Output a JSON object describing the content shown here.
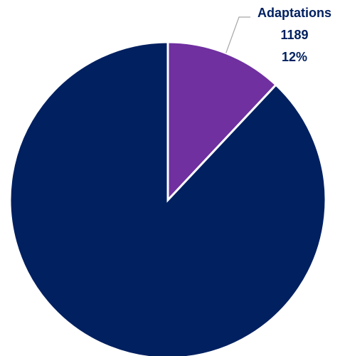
{
  "chart_data": {
    "type": "pie",
    "start_angle_deg": 0,
    "direction": "clockwise",
    "slices": [
      {
        "name": "Adaptations",
        "value": 1189,
        "percent_label": "12%",
        "color": "#7030a0",
        "show_label": true
      },
      {
        "name": "",
        "value": 8720,
        "percent_label": "",
        "color": "#002060",
        "show_label": false
      }
    ],
    "label_color": "#002060",
    "leader_color": "#a6a6a6",
    "legend": "none"
  }
}
